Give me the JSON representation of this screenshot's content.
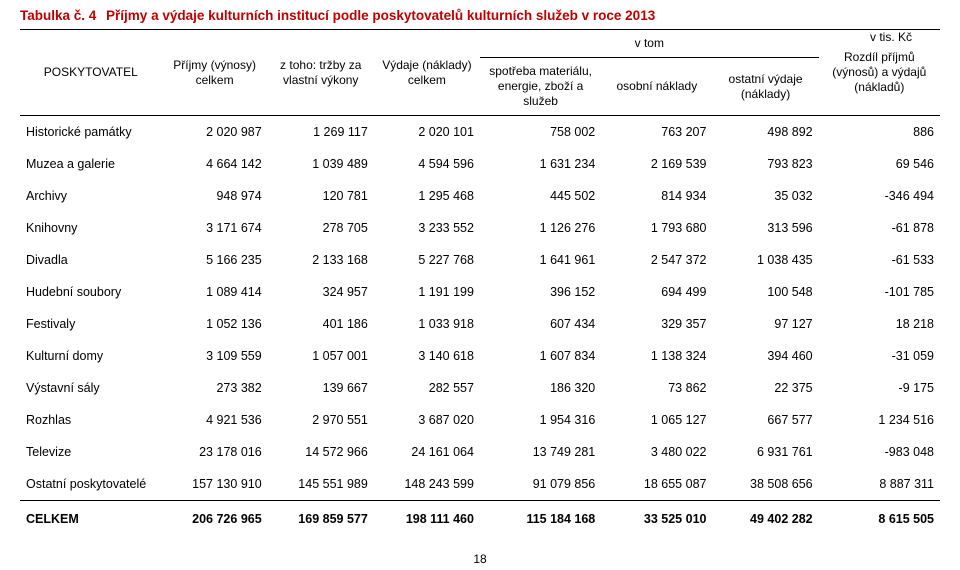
{
  "title_prefix": "Tabulka č. 4",
  "title_rest": "Příjmy a výdaje kulturních institucí podle poskytovatelů kulturních služeb v roce 2013",
  "unit_label": "v tis. Kč",
  "page_number": "18",
  "headers": {
    "poskytovatel": "POSKYTOVATEL",
    "prijmy": "Příjmy (výnosy) celkem",
    "ztoho": "z toho: tržby za vlastní výkony",
    "vydaje": "Výdaje (náklady) celkem",
    "vtom": "v tom",
    "spotreba": "spotřeba materiálu, energie, zboží a služeb",
    "osobni": "osobní náklady",
    "ostatni": "ostatní výdaje (náklady)",
    "rozdil": "Rozdíl příjmů (výnosů) a výdajů (nákladů)"
  },
  "rows": [
    {
      "label": "Historické památky",
      "v": [
        "2 020 987",
        "1 269 117",
        "2 020 101",
        "758 002",
        "763 207",
        "498 892",
        "886"
      ]
    },
    {
      "label": "Muzea a galerie",
      "v": [
        "4 664 142",
        "1 039 489",
        "4 594 596",
        "1 631 234",
        "2 169 539",
        "793 823",
        "69 546"
      ]
    },
    {
      "label": "Archivy",
      "v": [
        "948 974",
        "120 781",
        "1 295 468",
        "445 502",
        "814 934",
        "35 032",
        "-346 494"
      ]
    },
    {
      "label": "Knihovny",
      "v": [
        "3 171 674",
        "278 705",
        "3 233 552",
        "1 126 276",
        "1 793 680",
        "313 596",
        "-61 878"
      ]
    },
    {
      "label": "Divadla",
      "v": [
        "5 166 235",
        "2 133 168",
        "5 227 768",
        "1 641 961",
        "2 547 372",
        "1 038 435",
        "-61 533"
      ]
    },
    {
      "label": "Hudební soubory",
      "v": [
        "1 089 414",
        "324 957",
        "1 191 199",
        "396 152",
        "694 499",
        "100 548",
        "-101 785"
      ]
    },
    {
      "label": "Festivaly",
      "v": [
        "1 052 136",
        "401 186",
        "1 033 918",
        "607 434",
        "329 357",
        "97 127",
        "18 218"
      ]
    },
    {
      "label": "Kulturní domy",
      "v": [
        "3 109 559",
        "1 057 001",
        "3 140 618",
        "1 607 834",
        "1 138 324",
        "394 460",
        "-31 059"
      ]
    },
    {
      "label": "Výstavní sály",
      "v": [
        "273 382",
        "139 667",
        "282 557",
        "186 320",
        "73 862",
        "22 375",
        "-9 175"
      ]
    },
    {
      "label": "Rozhlas",
      "v": [
        "4 921 536",
        "2 970 551",
        "3 687 020",
        "1 954 316",
        "1 065 127",
        "667 577",
        "1 234 516"
      ]
    },
    {
      "label": "Televize",
      "v": [
        "23 178 016",
        "14 572 966",
        "24 161 064",
        "13 749 281",
        "3 480 022",
        "6 931 761",
        "-983 048"
      ]
    },
    {
      "label": "Ostatní poskytovatelé",
      "v": [
        "157 130 910",
        "145 551 989",
        "148 243 599",
        "91 079 856",
        "18 655 087",
        "38 508 656",
        "8 887 311"
      ]
    }
  ],
  "totals": {
    "label": "CELKEM",
    "v": [
      "206 726 965",
      "169 859 577",
      "198 111 460",
      "115 184 168",
      "33 525 010",
      "49 402 282",
      "8 615 505"
    ]
  }
}
